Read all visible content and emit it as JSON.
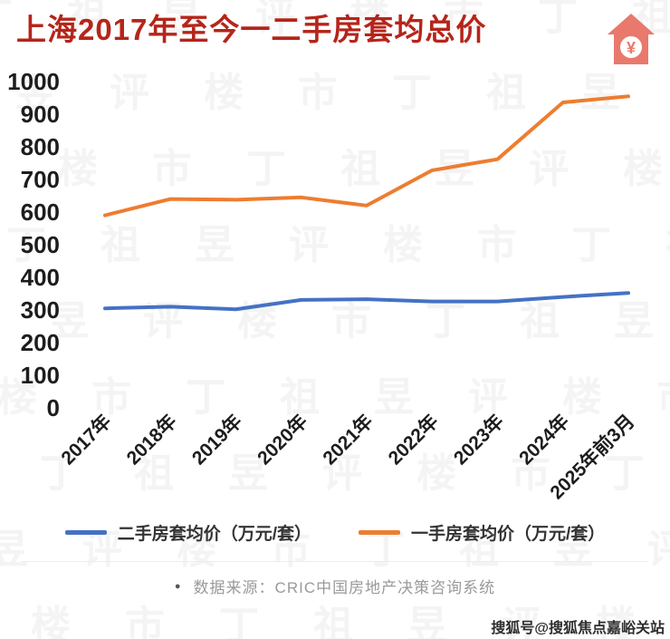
{
  "header": {
    "title": "上海2017年至今一二手房套均总价",
    "icon_symbol": "¥"
  },
  "chart_data": {
    "type": "line",
    "title": "上海2017年至今一二手房套均总价",
    "categories": [
      "2017年",
      "2018年",
      "2019年",
      "2020年",
      "2021年",
      "2022年",
      "2023年",
      "2024年",
      "2025年前3月"
    ],
    "series": [
      {
        "name": "二手房套均价（万元/套）",
        "color": "#4472c4",
        "values": [
          305,
          310,
          302,
          331,
          333,
          326,
          326,
          340,
          352
        ]
      },
      {
        "name": "一手房套均价（万元/套）",
        "color": "#ed7d31",
        "values": [
          590,
          640,
          638,
          645,
          620,
          728,
          762,
          936,
          955
        ]
      }
    ],
    "xlabel": "",
    "ylabel": "",
    "ylim": [
      0,
      1000
    ],
    "ytick_step": 100,
    "grid": false,
    "legend_position": "bottom"
  },
  "footer": {
    "bullet": "●",
    "source": "数据来源：CRIC中国房地产决策咨询系统"
  },
  "watermarks": {
    "background_text": "丁祖昱评楼市",
    "corner_text": "搜狐号@搜狐焦点嘉峪关站"
  },
  "colors": {
    "title": "#b5251a",
    "house_icon": "#e8796c",
    "axis_text": "#1d1d1d",
    "source_text": "#9a9a9a",
    "secondhand_line": "#4472c4",
    "newhome_line": "#ed7d31"
  }
}
